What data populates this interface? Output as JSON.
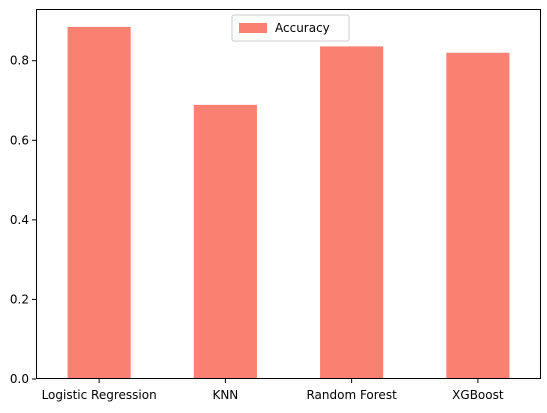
{
  "chart_data": {
    "type": "bar",
    "title": "",
    "xlabel": "",
    "ylabel": "",
    "categories": [
      "Logistic Regression",
      "KNN",
      "Random Forest",
      "XGBoost"
    ],
    "series": [
      {
        "name": "Accuracy",
        "values": [
          0.885,
          0.689,
          0.836,
          0.82
        ],
        "color": "#fa8072"
      }
    ],
    "ylim": [
      0,
      0.93
    ],
    "yticks": [
      0.0,
      0.2,
      0.4,
      0.6,
      0.8
    ],
    "ytick_labels": [
      "0.0",
      "0.2",
      "0.4",
      "0.6",
      "0.8"
    ],
    "grid": false,
    "legend": {
      "position": "top-center",
      "entries": [
        "Accuracy"
      ]
    }
  }
}
